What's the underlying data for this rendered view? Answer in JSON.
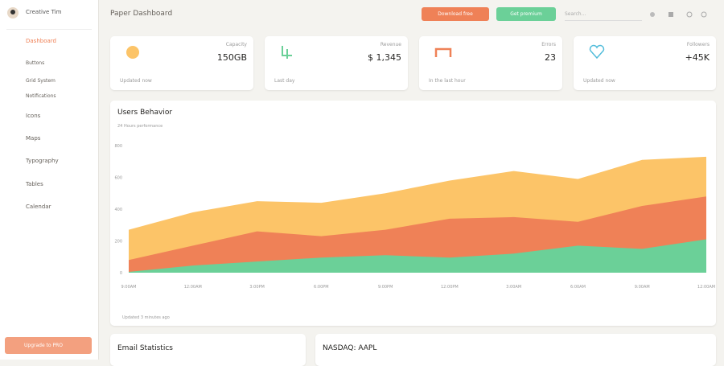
{
  "sidebar": {
    "brand": "Creative Tim",
    "items": [
      "Dashboard",
      "Buttons",
      "Grid System",
      "Notifications",
      "Icons",
      "Maps",
      "Typography",
      "Tables",
      "Calendar"
    ],
    "upgrade": "Upgrade to PRO"
  },
  "navbar": {
    "title": "Paper Dashboard",
    "buttons": [
      "Download free",
      "Get premium"
    ],
    "search": "Search..."
  },
  "stats": [
    {
      "label": "Capacity",
      "value": "150GB",
      "footer": "Updated now"
    },
    {
      "label": "Revenue",
      "value": "$ 1,345",
      "footer": "Last day"
    },
    {
      "label": "Errors",
      "value": "23",
      "footer": "In the last hour"
    },
    {
      "label": "Followers",
      "value": "+45K",
      "footer": "Updated now"
    }
  ],
  "users_chart": {
    "type": "area",
    "title": "Users Behavior",
    "subtitle": "24 Hours performance",
    "footer": "Updated 3 minutes ago",
    "categories": [
      "9:00AM",
      "12:00AM",
      "3:00PM",
      "6:00PM",
      "9:00PM",
      "12:00PM",
      "3:00AM",
      "6:00AM",
      "9:00AM",
      "12:00AM"
    ],
    "series": [
      {
        "color": "#fcc468",
        "values": [
          270,
          380,
          450,
          440,
          500,
          580,
          640,
          590,
          710,
          730
        ]
      },
      {
        "color": "#ef8157",
        "values": [
          80,
          170,
          260,
          230,
          270,
          340,
          350,
          320,
          420,
          480
        ]
      },
      {
        "color": "#6bd098",
        "values": [
          5,
          45,
          70,
          95,
          110,
          95,
          120,
          170,
          150,
          210
        ]
      }
    ],
    "ylim": [
      0,
      800
    ],
    "yticks": [
      0,
      200,
      400,
      600,
      800
    ],
    "grid": false
  },
  "bottom_cards": {
    "left": "Email Statistics",
    "right": "NASDAQ: AAPL"
  }
}
